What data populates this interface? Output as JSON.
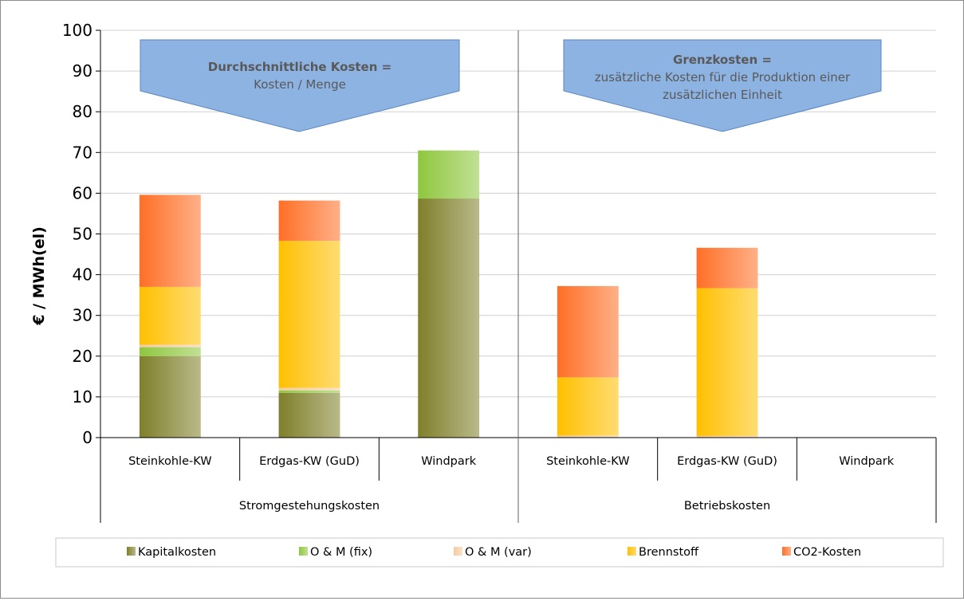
{
  "chart_data": {
    "type": "bar",
    "stacked": true,
    "ylabel": "€ / MWh(el)",
    "ylim": [
      0,
      100
    ],
    "yticks": [
      0,
      10,
      20,
      30,
      40,
      50,
      60,
      70,
      80,
      90,
      100
    ],
    "grid": true,
    "legend_position": "bottom",
    "groups": [
      {
        "label": "Stromgestehungskosten",
        "categories": [
          "Steinkohle-KW",
          "Erdgas-KW (GuD)",
          "Windpark"
        ]
      },
      {
        "label": "Betriebskosten",
        "categories": [
          "Steinkohle-KW",
          "Erdgas-KW (GuD)",
          "Windpark"
        ]
      }
    ],
    "series": [
      {
        "name": "Kapitalkosten",
        "color": "#7f7f2b",
        "values": [
          20,
          11,
          58.7,
          0,
          0,
          0
        ]
      },
      {
        "name": "O & M (fix)",
        "color": "#8fc73e",
        "values": [
          2.2,
          0.6,
          11.8,
          0,
          0,
          0
        ]
      },
      {
        "name": "O & M (var)",
        "color": "#f4cba0",
        "values": [
          0.6,
          0.6,
          0,
          0.5,
          0.4,
          0
        ]
      },
      {
        "name": "Brennstoff",
        "color": "#ffc000",
        "values": [
          14.2,
          36.1,
          0,
          14.3,
          36.3,
          0
        ]
      },
      {
        "name": "CO2-Kosten",
        "color": "#ff6f26",
        "values": [
          22.6,
          9.9,
          0,
          22.4,
          9.9,
          0
        ]
      }
    ],
    "annotations": [
      {
        "title": "Durchschnittliche Kosten =",
        "text": [
          "Kosten / Menge"
        ]
      },
      {
        "title": "Grenzkosten =",
        "text": [
          "zusätzliche Kosten für die Produktion einer",
          "zusätzlichen Einheit"
        ]
      }
    ]
  }
}
